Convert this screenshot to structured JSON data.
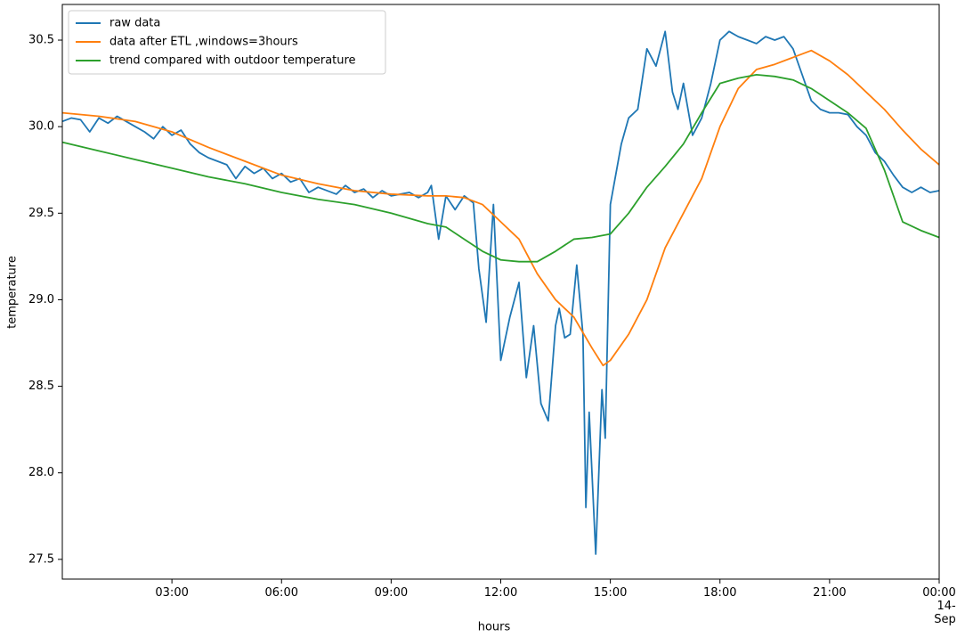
{
  "chart_data": {
    "type": "line",
    "xlabel": "hours",
    "ylabel": "temperature",
    "xlim": [
      0,
      24
    ],
    "ylim": [
      27.386,
      30.706
    ],
    "xticks": [
      {
        "value": 3,
        "label": "03:00"
      },
      {
        "value": 6,
        "label": "06:00"
      },
      {
        "value": 9,
        "label": "09:00"
      },
      {
        "value": 12,
        "label": "12:00"
      },
      {
        "value": 15,
        "label": "15:00"
      },
      {
        "value": 18,
        "label": "18:00"
      },
      {
        "value": 21,
        "label": "21:00"
      },
      {
        "value": 24,
        "label": "00:00\n14-Sep"
      }
    ],
    "yticks": [
      27.5,
      {
        "value": 28,
        "label": "28.0"
      },
      28.5,
      {
        "value": 29,
        "label": "29.0"
      },
      29.5,
      {
        "value": 30,
        "label": "30.0"
      },
      30.5
    ],
    "legend": "upper left",
    "series": [
      {
        "name": "raw data",
        "color": "#1f77b4",
        "x": [
          0,
          0.25,
          0.5,
          0.75,
          1,
          1.25,
          1.5,
          1.75,
          2,
          2.25,
          2.5,
          2.75,
          3,
          3.25,
          3.5,
          3.75,
          4,
          4.25,
          4.5,
          4.75,
          5,
          5.25,
          5.5,
          5.75,
          6,
          6.25,
          6.5,
          6.75,
          7,
          7.25,
          7.5,
          7.75,
          8,
          8.25,
          8.5,
          8.75,
          9,
          9.25,
          9.5,
          9.75,
          10,
          10.1,
          10.3,
          10.5,
          10.75,
          11,
          11.25,
          11.4,
          11.6,
          11.8,
          12,
          12.25,
          12.5,
          12.7,
          12.9,
          13.1,
          13.3,
          13.5,
          13.6,
          13.75,
          13.9,
          14.08,
          14.25,
          14.33,
          14.42,
          14.6,
          14.77,
          14.86,
          15,
          15.3,
          15.5,
          15.75,
          16,
          16.25,
          16.5,
          16.7,
          16.85,
          17,
          17.25,
          17.5,
          17.75,
          18,
          18.25,
          18.5,
          18.75,
          19,
          19.25,
          19.5,
          19.75,
          20,
          20.25,
          20.5,
          20.75,
          21,
          21.25,
          21.5,
          21.75,
          22,
          22.25,
          22.5,
          22.75,
          23,
          23.25,
          23.5,
          23.75,
          24
        ],
        "values": [
          30.03,
          30.05,
          30.04,
          29.97,
          30.05,
          30.02,
          30.06,
          30.03,
          30.0,
          29.97,
          29.93,
          30.0,
          29.95,
          29.98,
          29.9,
          29.85,
          29.82,
          29.8,
          29.78,
          29.7,
          29.77,
          29.73,
          29.76,
          29.7,
          29.73,
          29.68,
          29.7,
          29.62,
          29.65,
          29.63,
          29.61,
          29.66,
          29.62,
          29.64,
          29.59,
          29.63,
          29.6,
          29.61,
          29.62,
          29.59,
          29.62,
          29.66,
          29.35,
          29.6,
          29.52,
          29.6,
          29.56,
          29.18,
          28.87,
          29.55,
          28.65,
          28.9,
          29.1,
          28.55,
          28.85,
          28.4,
          28.3,
          28.85,
          28.95,
          28.78,
          28.8,
          29.2,
          28.8,
          27.8,
          28.35,
          27.53,
          28.48,
          28.2,
          29.55,
          29.9,
          30.05,
          30.1,
          30.45,
          30.35,
          30.55,
          30.2,
          30.1,
          30.25,
          29.95,
          30.05,
          30.25,
          30.5,
          30.55,
          30.52,
          30.5,
          30.48,
          30.52,
          30.5,
          30.52,
          30.45,
          30.3,
          30.15,
          30.1,
          30.08,
          30.08,
          30.07,
          30.0,
          29.95,
          29.85,
          29.8,
          29.72,
          29.65,
          29.62,
          29.65,
          29.62,
          29.63
        ]
      },
      {
        "name": "data after ETL ,windows=3hours",
        "color": "#ff7f0e",
        "x": [
          0,
          1,
          2,
          3,
          4,
          5,
          6,
          7,
          8,
          9,
          10,
          10.5,
          11,
          11.5,
          12,
          12.5,
          13,
          13.5,
          14,
          14.5,
          14.8,
          15,
          15.5,
          16,
          16.5,
          17,
          17.5,
          18,
          18.5,
          19,
          19.5,
          20,
          20.5,
          21,
          21.5,
          22,
          22.5,
          23,
          23.5,
          24
        ],
        "values": [
          30.08,
          30.06,
          30.03,
          29.97,
          29.88,
          29.8,
          29.72,
          29.67,
          29.63,
          29.61,
          29.6,
          29.6,
          29.59,
          29.55,
          29.45,
          29.35,
          29.15,
          29.0,
          28.9,
          28.72,
          28.62,
          28.65,
          28.8,
          29.0,
          29.3,
          29.5,
          29.7,
          30.0,
          30.22,
          30.33,
          30.36,
          30.4,
          30.44,
          30.38,
          30.3,
          30.2,
          30.1,
          29.98,
          29.87,
          29.78
        ]
      },
      {
        "name": "trend compared with outdoor temperature",
        "color": "#2ca02c",
        "x": [
          0,
          1,
          2,
          3,
          4,
          5,
          6,
          7,
          8,
          9,
          10,
          10.5,
          11,
          11.5,
          12,
          12.5,
          13,
          13.5,
          14,
          14.5,
          15,
          15.5,
          16,
          16.5,
          17,
          17.5,
          18,
          18.5,
          19,
          19.5,
          20,
          20.5,
          21,
          21.5,
          22,
          22.5,
          23,
          23.5,
          24
        ],
        "values": [
          29.91,
          29.86,
          29.81,
          29.76,
          29.71,
          29.67,
          29.62,
          29.58,
          29.55,
          29.5,
          29.44,
          29.42,
          29.35,
          29.28,
          29.23,
          29.22,
          29.22,
          29.28,
          29.35,
          29.36,
          29.38,
          29.5,
          29.65,
          29.77,
          29.9,
          30.08,
          30.25,
          30.28,
          30.3,
          30.29,
          30.27,
          30.22,
          30.15,
          30.08,
          29.99,
          29.75,
          29.45,
          29.4,
          29.36
        ]
      }
    ]
  }
}
